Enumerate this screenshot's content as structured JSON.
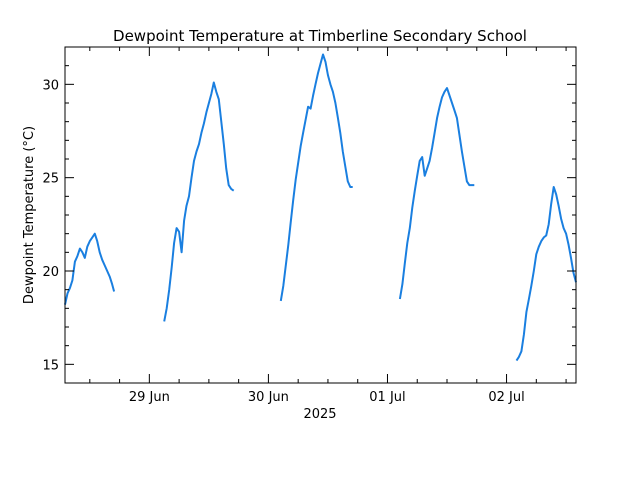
{
  "chart_data": {
    "type": "line",
    "title": "Dewpoint Temperature at Timberline Secondary School",
    "xlabel": "2025",
    "ylabel": "Dewpoint Temperature (°C)",
    "x_unit": "hours since 2025-06-28 00:00 (local)",
    "xlim": [
      7.0,
      110.0
    ],
    "ylim": [
      14.0,
      32.0
    ],
    "yticks": [
      15,
      20,
      25,
      30
    ],
    "xticks": [
      {
        "x": 24,
        "label": "29 Jun"
      },
      {
        "x": 48,
        "label": "30 Jun"
      },
      {
        "x": 72,
        "label": "01 Jul"
      },
      {
        "x": 96,
        "label": "02 Jul"
      }
    ],
    "grid": false,
    "legend": "none",
    "colors": {
      "line": "#1a7fe0",
      "axes": "#000000",
      "background": "#ffffff"
    },
    "series": [
      {
        "name": "",
        "segments": [
          {
            "x": [
              7.0,
              7.5,
              8.0,
              8.5,
              9.0,
              9.5,
              10.0,
              10.5,
              11.0,
              11.5,
              12.0,
              12.5,
              13.0,
              13.5,
              14.0,
              14.5,
              15.0,
              15.5,
              16.0,
              16.5,
              16.9
            ],
            "y": [
              18.2,
              18.8,
              19.1,
              19.5,
              20.5,
              20.8,
              21.2,
              21.0,
              20.7,
              21.3,
              21.6,
              21.8,
              22.0,
              21.6,
              21.0,
              20.6,
              20.3,
              20.0,
              19.7,
              19.3,
              18.9
            ]
          },
          {
            "x": [
              27.0,
              27.5,
              28.0,
              28.5,
              29.0,
              29.5,
              30.0,
              30.5,
              31.0,
              31.5,
              32.0,
              32.5,
              33.0,
              33.5,
              34.0,
              34.5,
              35.0,
              35.5,
              36.0,
              36.5,
              37.0,
              37.5,
              38.0,
              38.5,
              39.0,
              39.5,
              40.0,
              40.5,
              41.0
            ],
            "y": [
              17.3,
              18.0,
              19.0,
              20.2,
              21.5,
              22.3,
              22.1,
              21.0,
              22.7,
              23.5,
              24.0,
              25.0,
              25.9,
              26.4,
              26.8,
              27.4,
              27.9,
              28.5,
              29.0,
              29.5,
              30.1,
              29.6,
              29.2,
              28.0,
              26.8,
              25.5,
              24.6,
              24.4,
              24.3
            ]
          },
          {
            "x": [
              50.5,
              51.0,
              51.5,
              52.0,
              52.5,
              53.0,
              53.5,
              54.0,
              54.5,
              55.0,
              55.5,
              56.0,
              56.5,
              57.0,
              57.5,
              58.0,
              58.5,
              59.0,
              59.5,
              60.0,
              60.5,
              61.0,
              61.5,
              62.0,
              62.5,
              63.0,
              63.5,
              64.0,
              64.5,
              65.0
            ],
            "y": [
              18.4,
              19.2,
              20.3,
              21.4,
              22.6,
              23.8,
              24.9,
              25.8,
              26.7,
              27.4,
              28.1,
              28.8,
              28.7,
              29.4,
              30.0,
              30.6,
              31.1,
              31.6,
              31.2,
              30.5,
              30.0,
              29.6,
              29.0,
              28.2,
              27.4,
              26.4,
              25.6,
              24.8,
              24.5,
              24.5
            ]
          },
          {
            "x": [
              74.5,
              75.0,
              75.5,
              76.0,
              76.5,
              77.0,
              77.5,
              78.0,
              78.5,
              79.0,
              79.5,
              80.0,
              80.5,
              81.0,
              81.5,
              82.0,
              82.5,
              83.0,
              83.5,
              84.0,
              84.5,
              85.0,
              85.5,
              86.0,
              86.5,
              87.0,
              87.5,
              88.0,
              88.5,
              89.0,
              89.5
            ],
            "y": [
              18.5,
              19.3,
              20.4,
              21.5,
              22.3,
              23.4,
              24.3,
              25.1,
              25.9,
              26.1,
              25.1,
              25.5,
              25.9,
              26.6,
              27.4,
              28.2,
              28.8,
              29.3,
              29.6,
              29.8,
              29.4,
              29.0,
              28.6,
              28.2,
              27.3,
              26.4,
              25.6,
              24.8,
              24.6,
              24.6,
              24.6
            ]
          },
          {
            "x": [
              98.0,
              98.5,
              99.0,
              99.5,
              100.0,
              100.5,
              101.0,
              101.5,
              102.0,
              102.5,
              103.0,
              103.5,
              104.0,
              104.5,
              105.0,
              105.5,
              106.0,
              106.5,
              107.0,
              107.5,
              108.0,
              108.5,
              109.0,
              109.5,
              110.0
            ],
            "y": [
              15.2,
              15.4,
              15.7,
              16.6,
              17.8,
              18.5,
              19.2,
              20.0,
              20.9,
              21.3,
              21.6,
              21.8,
              21.9,
              22.5,
              23.6,
              24.5,
              24.1,
              23.5,
              22.8,
              22.3,
              22.0,
              21.4,
              20.7,
              19.9,
              19.4
            ]
          }
        ]
      }
    ]
  }
}
